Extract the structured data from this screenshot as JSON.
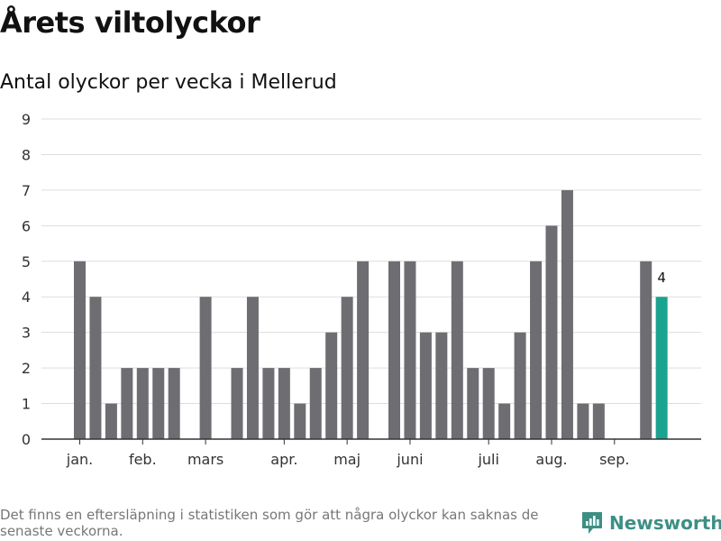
{
  "title": "Årets viltolyckor",
  "subtitle": "Antal olyckor per vecka i Mellerud",
  "footnote": "Det finns en eftersläpning i statistiken som gör att några olyckor kan saknas de senaste veckorna.",
  "brand": "Newsworthy",
  "colors": {
    "bar": "#6e6d72",
    "highlight": "#1aa38f",
    "grid": "#dddddd",
    "axis": "#333333",
    "brand": "#3d8f84"
  },
  "chart_data": {
    "type": "bar",
    "y_ticks": [
      "0",
      "1",
      "2",
      "3",
      "4",
      "5",
      "6",
      "7",
      "8",
      "9"
    ],
    "ylim": [
      0,
      9
    ],
    "grid": true,
    "month_labels": [
      {
        "label": "jan.",
        "week": 1
      },
      {
        "label": "feb.",
        "week": 5
      },
      {
        "label": "mars",
        "week": 9
      },
      {
        "label": "apr.",
        "week": 14
      },
      {
        "label": "maj",
        "week": 18
      },
      {
        "label": "juni",
        "week": 22
      },
      {
        "label": "juli",
        "week": 27
      },
      {
        "label": "aug.",
        "week": 31
      },
      {
        "label": "sep.",
        "week": 35
      }
    ],
    "weeks": [
      1,
      2,
      3,
      4,
      5,
      6,
      7,
      8,
      9,
      10,
      11,
      12,
      13,
      14,
      15,
      16,
      17,
      18,
      19,
      20,
      21,
      22,
      23,
      24,
      25,
      26,
      27,
      28,
      29,
      30,
      31,
      32,
      33,
      34,
      35,
      36,
      37,
      38
    ],
    "values": [
      5,
      4,
      1,
      2,
      2,
      2,
      2,
      0,
      4,
      0,
      2,
      4,
      2,
      2,
      1,
      2,
      3,
      4,
      5,
      0,
      5,
      5,
      3,
      3,
      5,
      2,
      2,
      1,
      3,
      5,
      6,
      7,
      1,
      1,
      0,
      0,
      5,
      4
    ],
    "highlight_index": 37,
    "highlight_label": "4"
  }
}
